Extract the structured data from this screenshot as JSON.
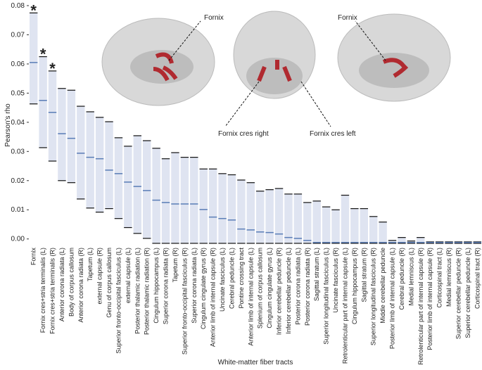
{
  "chart_data": {
    "type": "range_bar",
    "ylabel": "Pearson's rho",
    "xlabel": "White-matter fiber tracts",
    "categories": [
      "Fornix",
      "Fornix cres+stria terminalis (L)",
      "Fornix cres+stria terminalis (R)",
      "Anterior corona radiata (L)",
      "Body of corpus callosum",
      "Anterior corona radiata (R)",
      "Tapetum (L)",
      "external capsule (R)",
      "Genu of corpus callosum",
      "Superior fronto-occipital fasciculus (L)",
      "external capsule (L)",
      "Posterior thalamic radiation (L)",
      "Posterior thalamic radiation (R)",
      "Cingulum hippocampus (L)",
      "Superior corona radiata (R)",
      "Tapetum (R)",
      "Superior fronto-occipital fasciculus (R)",
      "Superior corona radiata (L)",
      "Cingulum cingulate gyrus (R)",
      "Anterior limb of internal capsule (R)",
      "Uncinate fasciculus (L)",
      "Cerebral peduncle (L)",
      "Pontine crossing tract",
      "Anterior limb of internal capsule (L)",
      "Splenium of corpus callosum",
      "Cingulum cingulate gyrus (L)",
      "Inferior cerebellar peduncle (R)",
      "Inferior cerebellar peduncle (L)",
      "Posterior corona radiata (L)",
      "Posterior corona radiata (R)",
      "Sagittal stratum (L)",
      "Superior longitudinal fasciculus (L)",
      "Uncinate fasciculus (R)",
      "Retrolenticular part of internal capsule (L)",
      "Cingulum hippocampus (R)",
      "Sagittal stratum (R)",
      "Superior longitudinal fasciculus (R)",
      "Middle cerebellar peduncle",
      "Posterior limb of internal capsule (L)",
      "Cerebral peduncle (R)",
      "Medial lemniscus (L)",
      "Retrolenticular part of internal capsule (R)",
      "Posterior limb of internal capsule (R)",
      "Corticospinal tract (L)",
      "Medial lemniscus (R)",
      "Superior cerebellar peduncle (R)",
      "Superior cerebellar peduncle (L)",
      "Corticospinal tract (R)"
    ],
    "high": [
      0.0775,
      0.0625,
      0.0576,
      0.0516,
      0.051,
      0.0455,
      0.0436,
      0.0417,
      0.0402,
      0.0347,
      0.0318,
      0.0354,
      0.0337,
      0.0311,
      0.0275,
      0.0296,
      0.028,
      0.028,
      0.024,
      0.024,
      0.0224,
      0.022,
      0.0202,
      0.0193,
      0.0164,
      0.0169,
      0.0173,
      0.0154,
      0.0154,
      0.0125,
      0.013,
      0.011,
      0.01,
      0.015,
      0.0104,
      0.0104,
      0.0077,
      0.0058,
      -0.0005,
      0.0005,
      -0.0007,
      0.0005,
      -0.001,
      -0.001,
      -0.001,
      -0.001,
      -0.001,
      -0.001
    ],
    "median": [
      0.0605,
      0.0475,
      0.0434,
      0.0361,
      0.0345,
      0.0294,
      0.028,
      0.0275,
      0.0236,
      0.0224,
      0.0195,
      0.018,
      0.0166,
      0.0133,
      0.0125,
      0.012,
      0.012,
      0.012,
      0.0101,
      0.0075,
      0.007,
      0.0065,
      0.0034,
      0.0031,
      0.0024,
      0.0022,
      0.0017,
      0.0005,
      0.0002,
      -0.0005,
      -0.0012,
      -0.0012,
      -0.0012,
      -0.0012,
      -0.0012,
      -0.0012,
      -0.0012,
      -0.0012,
      -0.0012,
      -0.0012,
      -0.0012,
      -0.0012,
      -0.0012,
      -0.0012,
      -0.0012,
      -0.0012,
      -0.0012,
      -0.0012
    ],
    "low": [
      0.0463,
      0.0313,
      0.0267,
      0.02,
      0.0193,
      0.0137,
      0.0106,
      0.0092,
      0.0104,
      0.007,
      0.0039,
      0.0019,
      0.0002,
      -0.0015,
      -0.0015,
      -0.0015,
      -0.0015,
      -0.0015,
      -0.0015,
      -0.0015,
      -0.0015,
      -0.0015,
      -0.0015,
      -0.0015,
      -0.0015,
      -0.0015,
      -0.0015,
      -0.0015,
      -0.0015,
      -0.0015,
      -0.0015,
      -0.0015,
      -0.0015,
      -0.0015,
      -0.0015,
      -0.0015,
      -0.0015,
      -0.0015,
      -0.0015,
      -0.0015,
      -0.0015,
      -0.0015,
      -0.0015,
      -0.0015,
      -0.0015,
      -0.0015,
      -0.0015,
      -0.0015
    ],
    "significance_labels": [
      "*",
      "*",
      "*",
      null,
      null,
      null,
      null,
      null,
      null,
      null,
      null,
      null,
      null,
      null,
      null,
      null,
      null,
      null,
      null,
      null,
      null,
      null,
      null,
      null,
      null,
      null,
      null,
      null,
      null,
      null,
      null,
      null,
      null,
      null,
      null,
      null,
      null,
      null,
      null,
      null,
      null,
      null,
      null,
      null,
      null,
      null,
      null,
      null
    ],
    "bar_color": "#dfe4f1",
    "median_color": "#5a7db6",
    "edge_color": "#111111",
    "ylim": [
      -0.002,
      0.08
    ],
    "yticks": [
      {
        "value": 0,
        "label": "0.00"
      },
      0.01,
      0.02,
      0.03,
      0.04,
      0.05,
      0.06,
      0.07,
      0.08
    ],
    "annotations": [
      "Fornix",
      "Fornix cres right",
      "Fornix cres left",
      "Fornix"
    ]
  }
}
